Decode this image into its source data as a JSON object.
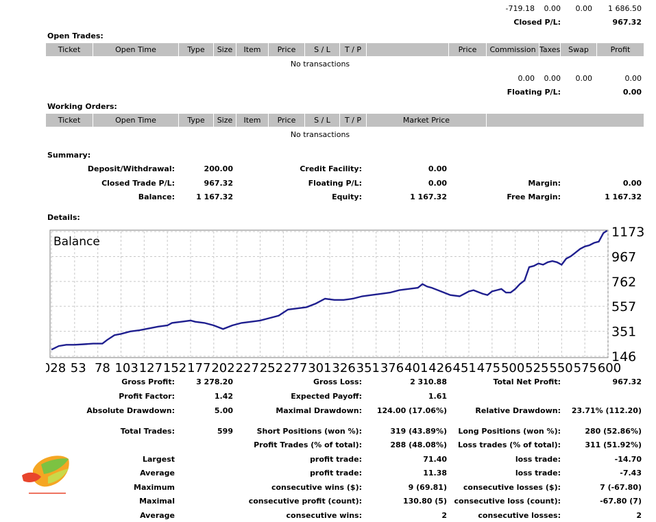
{
  "top_row": {
    "v1": "-719.18",
    "v2": "0.00",
    "v3": "0.00",
    "v4": "1 686.50"
  },
  "closed_pl": {
    "label": "Closed P/L:",
    "value": "967.32"
  },
  "open_trades": {
    "title": "Open Trades:",
    "columns": [
      "Ticket",
      "Open Time",
      "Type",
      "Size",
      "Item",
      "Price",
      "S / L",
      "T / P",
      "Price",
      "Commission",
      "Taxes",
      "Swap",
      "Profit"
    ],
    "empty": "No transactions",
    "totals": {
      "commission": "0.00",
      "taxes": "0.00",
      "swap": "0.00",
      "profit": "0.00"
    },
    "floating_label": "Floating P/L:",
    "floating_value": "0.00"
  },
  "working_orders": {
    "title": "Working Orders:",
    "columns": [
      "Ticket",
      "Open Time",
      "Type",
      "Size",
      "Item",
      "Price",
      "S / L",
      "T / P",
      "Market Price"
    ],
    "empty": "No transactions"
  },
  "summary": {
    "title": "Summary:",
    "deposit_label": "Deposit/Withdrawal:",
    "deposit_value": "200.00",
    "credit_label": "Credit Facility:",
    "credit_value": "0.00",
    "closed_label": "Closed Trade P/L:",
    "closed_value": "967.32",
    "floating_label": "Floating P/L:",
    "floating_value": "0.00",
    "margin_label": "Margin:",
    "margin_value": "0.00",
    "balance_label": "Balance:",
    "balance_value": "1 167.32",
    "equity_label": "Equity:",
    "equity_value": "1 167.32",
    "free_margin_label": "Free Margin:",
    "free_margin_value": "1 167.32"
  },
  "details_title": "Details:",
  "chart_data": {
    "type": "line",
    "title": "Balance",
    "y_ticks": [
      "1173",
      "967",
      "762",
      "557",
      "351",
      "146"
    ],
    "y_tick_values": [
      1173,
      967,
      762,
      557,
      351,
      146
    ],
    "x_ticks": [
      "028",
      "53",
      "78",
      "103",
      "127",
      "152",
      "177",
      "202",
      "227",
      "252",
      "277",
      "301",
      "326",
      "351",
      "376",
      "401",
      "426",
      "451",
      "475",
      "500",
      "525",
      "550",
      "575",
      "600"
    ],
    "x_range": [
      0,
      600
    ],
    "ylim": [
      146,
      1173
    ],
    "grid": true,
    "line_color": "#1f1f8f",
    "x": [
      0,
      8,
      16,
      25,
      35,
      45,
      55,
      60,
      68,
      75,
      85,
      95,
      105,
      115,
      125,
      130,
      140,
      150,
      155,
      165,
      175,
      185,
      195,
      205,
      215,
      225,
      235,
      245,
      255,
      265,
      275,
      285,
      295,
      305,
      315,
      325,
      335,
      345,
      355,
      365,
      375,
      385,
      395,
      400,
      405,
      410,
      420,
      430,
      440,
      450,
      455,
      460,
      465,
      470,
      475,
      480,
      485,
      490,
      495,
      500,
      505,
      510,
      515,
      520,
      525,
      530,
      535,
      540,
      545,
      550,
      555,
      560,
      565,
      570,
      575,
      580,
      585,
      590,
      595,
      599
    ],
    "y": [
      200,
      230,
      240,
      240,
      245,
      250,
      250,
      280,
      320,
      330,
      350,
      360,
      375,
      390,
      400,
      420,
      430,
      440,
      430,
      420,
      400,
      370,
      400,
      420,
      430,
      440,
      460,
      480,
      530,
      540,
      550,
      580,
      620,
      610,
      610,
      620,
      640,
      650,
      660,
      670,
      690,
      700,
      710,
      740,
      720,
      710,
      680,
      650,
      640,
      680,
      690,
      675,
      660,
      650,
      680,
      690,
      700,
      670,
      670,
      700,
      740,
      770,
      880,
      890,
      910,
      900,
      920,
      930,
      920,
      900,
      950,
      970,
      1000,
      1030,
      1050,
      1060,
      1080,
      1090,
      1160,
      1180
    ]
  },
  "stats": {
    "gross_profit_label": "Gross Profit:",
    "gross_profit_value": "3 278.20",
    "gross_loss_label": "Gross Loss:",
    "gross_loss_value": "2 310.88",
    "net_profit_label": "Total Net Profit:",
    "net_profit_value": "967.32",
    "profit_factor_label": "Profit Factor:",
    "profit_factor_value": "1.42",
    "expected_payoff_label": "Expected Payoff:",
    "expected_payoff_value": "1.61",
    "abs_drawdown_label": "Absolute Drawdown:",
    "abs_drawdown_value": "5.00",
    "max_drawdown_label": "Maximal Drawdown:",
    "max_drawdown_value": "124.00 (17.06%)",
    "rel_drawdown_label": "Relative Drawdown:",
    "rel_drawdown_value": "23.71% (112.20)",
    "total_trades_label": "Total Trades:",
    "total_trades_value": "599",
    "short_label": "Short Positions (won %):",
    "short_value": "319 (43.89%)",
    "long_label": "Long Positions (won %):",
    "long_value": "280 (52.86%)",
    "profit_trades_label": "Profit Trades (% of total):",
    "profit_trades_value": "288 (48.08%)",
    "loss_trades_label": "Loss trades (% of total):",
    "loss_trades_value": "311 (51.92%)",
    "largest_label": "Largest",
    "largest_profit_label": "profit trade:",
    "largest_profit_value": "71.40",
    "largest_loss_label": "loss trade:",
    "largest_loss_value": "-14.70",
    "average_label": "Average",
    "average_profit_label": "profit trade:",
    "average_profit_value": "11.38",
    "average_loss_label": "loss trade:",
    "average_loss_value": "-7.43",
    "maximum_label": "Maximum",
    "max_cons_wins_label": "consecutive wins ($):",
    "max_cons_wins_value": "9 (69.81)",
    "max_cons_losses_label": "consecutive losses ($):",
    "max_cons_losses_value": "7 (-67.80)",
    "maximal_label": "Maximal",
    "maximal_profit_label": "consecutive profit (count):",
    "maximal_profit_value": "130.80 (5)",
    "maximal_loss_label": "consecutive loss (count):",
    "maximal_loss_value": "-67.80 (7)",
    "average2_label": "Average",
    "avg_cons_wins_label": "consecutive wins:",
    "avg_cons_wins_value": "2",
    "avg_cons_losses_label": "consecutive losses:",
    "avg_cons_losses_value": "2"
  }
}
